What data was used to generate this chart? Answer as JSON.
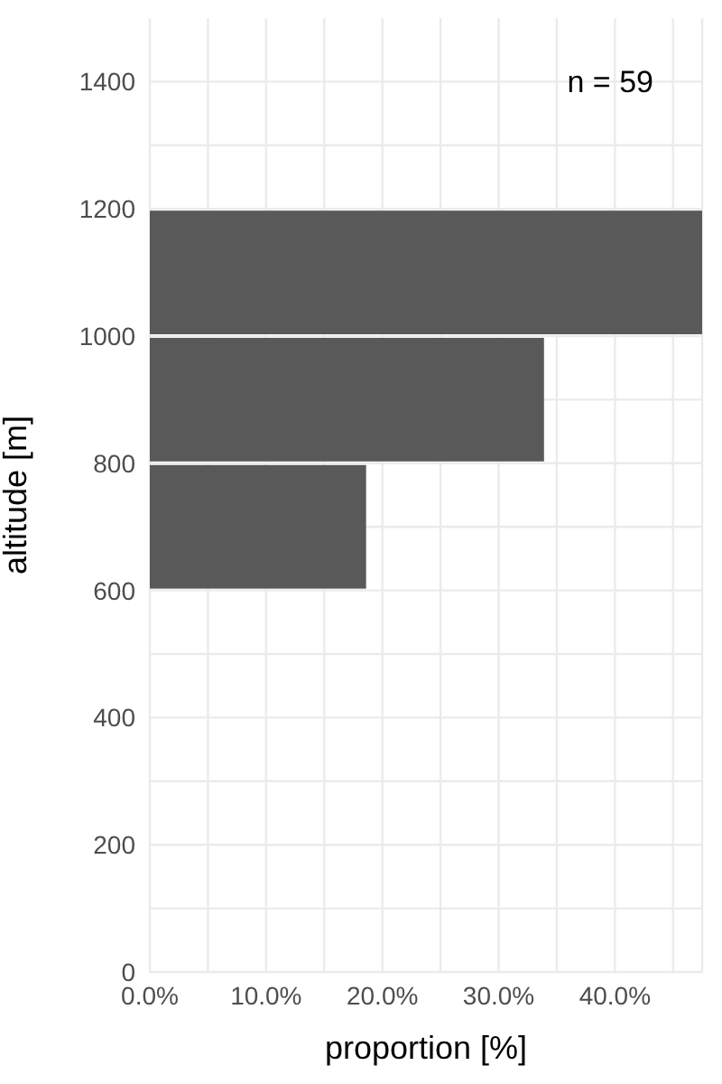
{
  "chart_data": {
    "type": "histogram",
    "orientation": "horizontal",
    "color": "#595959",
    "bins": [
      600,
      800,
      1000,
      1200
    ],
    "values": [
      18.6,
      33.9,
      47.5
    ],
    "xlabel": "proportion [%]",
    "ylabel": "altitude [m]",
    "xlim": [
      0,
      47.5
    ],
    "xticks": [
      {
        "value": 0,
        "label": "0.0%"
      },
      {
        "value": 5,
        "label": null
      },
      {
        "value": 10,
        "label": "10.0%"
      },
      {
        "value": 15,
        "label": null
      },
      {
        "value": 20,
        "label": "20.0%"
      },
      {
        "value": 25,
        "label": null
      },
      {
        "value": 30,
        "label": "30.0%"
      },
      {
        "value": 35,
        "label": null
      },
      {
        "value": 40,
        "label": "40.0%"
      },
      {
        "value": 45,
        "label": null
      }
    ],
    "ylim": [
      0,
      1500
    ],
    "yticks": [
      0,
      {
        "value": 100,
        "label": null
      },
      200,
      {
        "value": 300,
        "label": null
      },
      400,
      {
        "value": 500,
        "label": null
      },
      600,
      {
        "value": 700,
        "label": null
      },
      800,
      {
        "value": 900,
        "label": null
      },
      1000,
      1200,
      {
        "value": 1300,
        "label": null
      },
      1400
    ],
    "grid": true,
    "annotations": [
      "n = 59"
    ]
  }
}
